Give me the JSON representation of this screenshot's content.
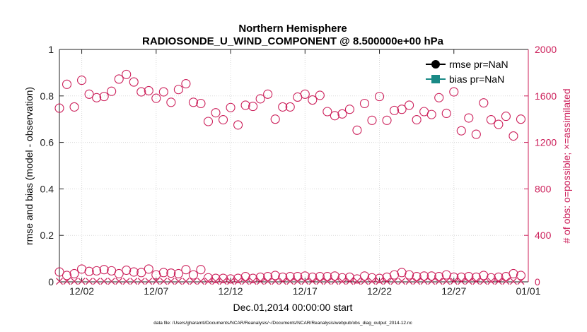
{
  "chart_data": {
    "type": "scatter",
    "title_line1": "Northern Hemisphere",
    "title_line2": "RADIOSONDE_U_WIND_COMPONENT @ 8.500000e+00 hPa",
    "xlabel": "Dec.01,2014 00:00:00 start",
    "ylabel_left": "rmse and bias (model - observation)",
    "ylabel_right": "# of obs: o=possible; ×=assimilated",
    "footnote": "data file: /Users/gharamti/Documents/NCAR/Reanalysis/~/Documents/NCAR/Reanalysis/webpub/obs_diag_output_2014-12.nc",
    "xlim": [
      0.0,
      31.5
    ],
    "ylim_left": [
      0,
      1
    ],
    "ylim_right": [
      0,
      2000
    ],
    "x_ticks": [
      {
        "value": 1.5,
        "label": "12/02"
      },
      {
        "value": 6.5,
        "label": "12/07"
      },
      {
        "value": 11.5,
        "label": "12/12"
      },
      {
        "value": 16.5,
        "label": "12/17"
      },
      {
        "value": 21.5,
        "label": "12/22"
      },
      {
        "value": 26.5,
        "label": "12/27"
      },
      {
        "value": 31.5,
        "label": "01/01"
      }
    ],
    "y_ticks_left": [
      {
        "value": 0,
        "label": "0"
      },
      {
        "value": 0.2,
        "label": "0.2"
      },
      {
        "value": 0.4,
        "label": "0.4"
      },
      {
        "value": 0.6,
        "label": "0.6"
      },
      {
        "value": 0.8,
        "label": "0.8"
      },
      {
        "value": 1,
        "label": "1"
      }
    ],
    "y_ticks_right": [
      {
        "value": 0,
        "label": "0"
      },
      {
        "value": 400,
        "label": "400"
      },
      {
        "value": 800,
        "label": "800"
      },
      {
        "value": 1200,
        "label": "1200"
      },
      {
        "value": 1600,
        "label": "1600"
      },
      {
        "value": 2000,
        "label": "2000"
      }
    ],
    "legend": [
      {
        "name": "rmse pr=NaN",
        "color": "#000000",
        "marker": "circle"
      },
      {
        "name": "bias pr=NaN",
        "color": "#1a8a86",
        "marker": "square"
      }
    ],
    "series": [
      {
        "name": "possible obs (upper)",
        "axis": "right",
        "marker": "circle-open",
        "color": "#cc1f5a",
        "x": [
          0.0,
          0.5,
          1.0,
          1.5,
          2.0,
          2.5,
          3.0,
          3.5,
          4.0,
          4.5,
          5.0,
          5.5,
          6.0,
          6.5,
          7.0,
          7.5,
          8.0,
          8.5,
          9.0,
          9.5,
          10.0,
          10.5,
          11.0,
          11.5,
          12.0,
          12.5,
          13.0,
          13.5,
          14.0,
          14.5,
          15.0,
          15.5,
          16.0,
          16.5,
          17.0,
          17.5,
          18.0,
          18.5,
          19.0,
          19.5,
          20.0,
          20.5,
          21.0,
          21.5,
          22.0,
          22.5,
          23.0,
          23.5,
          24.0,
          24.5,
          25.0,
          25.5,
          26.0,
          26.5,
          27.0,
          27.5,
          28.0,
          28.5,
          29.0,
          29.5,
          30.0,
          30.5,
          31.0
        ],
        "y": [
          1495,
          1700,
          1505,
          1735,
          1615,
          1585,
          1595,
          1640,
          1745,
          1785,
          1720,
          1635,
          1645,
          1580,
          1635,
          1545,
          1655,
          1705,
          1545,
          1535,
          1380,
          1455,
          1395,
          1500,
          1350,
          1520,
          1510,
          1575,
          1615,
          1400,
          1505,
          1505,
          1590,
          1615,
          1565,
          1605,
          1465,
          1430,
          1445,
          1485,
          1305,
          1535,
          1390,
          1595,
          1390,
          1475,
          1485,
          1520,
          1395,
          1465,
          1440,
          1585,
          1450,
          1635,
          1300,
          1410,
          1270,
          1540,
          1395,
          1355,
          1425,
          1255,
          1400
        ]
      },
      {
        "name": "possible obs (lower)",
        "axis": "right",
        "marker": "circle-open",
        "color": "#cc1f5a",
        "x": [
          0.0,
          0.5,
          1.0,
          1.5,
          2.0,
          2.5,
          3.0,
          3.5,
          4.0,
          4.5,
          5.0,
          5.5,
          6.0,
          6.5,
          7.0,
          7.5,
          8.0,
          8.5,
          9.0,
          9.5,
          10.0,
          10.5,
          11.0,
          11.5,
          12.0,
          12.5,
          13.0,
          13.5,
          14.0,
          14.5,
          15.0,
          15.5,
          16.0,
          16.5,
          17.0,
          17.5,
          18.0,
          18.5,
          19.0,
          19.5,
          20.0,
          20.5,
          21.0,
          21.5,
          22.0,
          22.5,
          23.0,
          23.5,
          24.0,
          24.5,
          25.0,
          25.5,
          26.0,
          26.5,
          27.0,
          27.5,
          28.0,
          28.5,
          29.0,
          29.5,
          30.0,
          30.5,
          31.0
        ],
        "y": [
          85,
          55,
          70,
          110,
          90,
          95,
          105,
          95,
          70,
          100,
          85,
          80,
          110,
          60,
          80,
          75,
          70,
          105,
          60,
          105,
          35,
          30,
          30,
          25,
          30,
          45,
          30,
          40,
          45,
          55,
          40,
          45,
          45,
          50,
          40,
          45,
          45,
          50,
          35,
          40,
          25,
          50,
          35,
          30,
          40,
          60,
          80,
          60,
          45,
          50,
          50,
          45,
          60,
          40,
          40,
          45,
          40,
          55,
          35,
          40,
          45,
          70,
          55
        ]
      },
      {
        "name": "assimilated obs",
        "axis": "right",
        "marker": "x",
        "color": "#cc1f5a",
        "x": [
          0.0,
          0.5,
          1.0,
          1.5,
          2.0,
          2.5,
          3.0,
          3.5,
          4.0,
          4.5,
          5.0,
          5.5,
          6.0,
          6.5,
          7.0,
          7.5,
          8.0,
          8.5,
          9.0,
          9.5,
          10.0,
          10.5,
          11.0,
          11.5,
          12.0,
          12.5,
          13.0,
          13.5,
          14.0,
          14.5,
          15.0,
          15.5,
          16.0,
          16.5,
          17.0,
          17.5,
          18.0,
          18.5,
          19.0,
          19.5,
          20.0,
          20.5,
          21.0,
          21.5,
          22.0,
          22.5,
          23.0,
          23.5,
          24.0,
          24.5,
          25.0,
          25.5,
          26.0,
          26.5,
          27.0,
          27.5,
          28.0,
          28.5,
          29.0,
          29.5,
          30.0,
          30.5,
          31.0
        ],
        "y": [
          5,
          5,
          5,
          5,
          5,
          5,
          5,
          5,
          5,
          5,
          5,
          5,
          5,
          5,
          5,
          5,
          5,
          5,
          5,
          5,
          5,
          5,
          5,
          5,
          5,
          5,
          5,
          5,
          5,
          5,
          5,
          5,
          5,
          5,
          5,
          5,
          5,
          5,
          5,
          5,
          5,
          5,
          5,
          5,
          5,
          5,
          5,
          5,
          5,
          5,
          5,
          5,
          5,
          5,
          5,
          5,
          5,
          5,
          5,
          5,
          5,
          5,
          5
        ]
      }
    ]
  }
}
